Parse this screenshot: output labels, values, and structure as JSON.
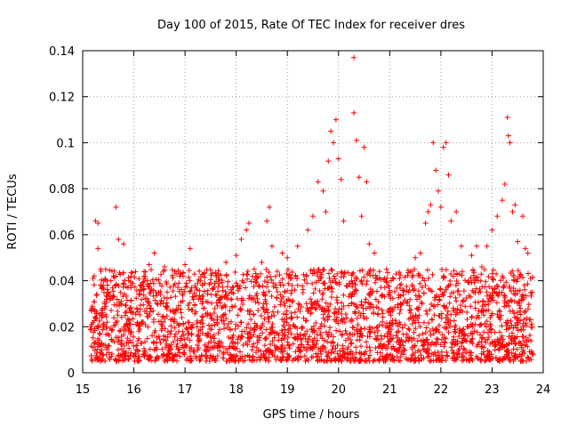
{
  "chart_data": {
    "type": "scatter",
    "title": "Day 100 of 2015, Rate Of TEC Index for receiver dres",
    "xlabel": "GPS time / hours",
    "ylabel": "ROTI / TECUs",
    "xlim": [
      15,
      24
    ],
    "ylim": [
      0,
      0.14
    ],
    "grid": true,
    "x_ticks": [
      15,
      16,
      17,
      18,
      19,
      20,
      21,
      22,
      23,
      24
    ],
    "y_ticks": [
      0,
      0.02,
      0.04,
      0.06,
      0.08,
      0.1,
      0.12,
      0.14
    ],
    "x_tick_labels": [
      "15",
      "16",
      "17",
      "18",
      "19",
      "20",
      "21",
      "22",
      "23",
      "24"
    ],
    "y_tick_labels": [
      "0",
      "0.02",
      "0.04",
      "0.06",
      "0.08",
      "0.1",
      "0.12",
      "0.14"
    ],
    "marker": "+",
    "marker_color": "#ff0000",
    "series": [
      {
        "name": "ROTI",
        "points": [
          [
            15.2,
            0.041
          ],
          [
            15.25,
            0.066
          ],
          [
            15.3,
            0.065
          ],
          [
            15.3,
            0.054
          ],
          [
            15.35,
            0.045
          ],
          [
            15.4,
            0.038
          ],
          [
            15.5,
            0.035
          ],
          [
            15.6,
            0.042
          ],
          [
            15.65,
            0.072
          ],
          [
            15.7,
            0.058
          ],
          [
            15.8,
            0.056
          ],
          [
            15.9,
            0.04
          ],
          [
            16.1,
            0.034
          ],
          [
            16.2,
            0.044
          ],
          [
            16.3,
            0.047
          ],
          [
            16.4,
            0.052
          ],
          [
            16.6,
            0.046
          ],
          [
            16.8,
            0.044
          ],
          [
            17.1,
            0.054
          ],
          [
            17.0,
            0.047
          ],
          [
            17.3,
            0.04
          ],
          [
            17.5,
            0.039
          ],
          [
            17.8,
            0.048
          ],
          [
            18.0,
            0.051
          ],
          [
            18.1,
            0.058
          ],
          [
            18.2,
            0.062
          ],
          [
            18.25,
            0.065
          ],
          [
            18.35,
            0.045
          ],
          [
            18.5,
            0.048
          ],
          [
            18.6,
            0.066
          ],
          [
            18.65,
            0.072
          ],
          [
            18.7,
            0.055
          ],
          [
            18.9,
            0.052
          ],
          [
            19.0,
            0.05
          ],
          [
            19.2,
            0.055
          ],
          [
            19.4,
            0.062
          ],
          [
            19.5,
            0.068
          ],
          [
            19.6,
            0.083
          ],
          [
            19.7,
            0.079
          ],
          [
            19.75,
            0.07
          ],
          [
            19.8,
            0.092
          ],
          [
            19.85,
            0.105
          ],
          [
            19.9,
            0.1
          ],
          [
            19.95,
            0.11
          ],
          [
            20.0,
            0.093
          ],
          [
            20.05,
            0.084
          ],
          [
            20.1,
            0.066
          ],
          [
            20.3,
            0.137
          ],
          [
            20.3,
            0.113
          ],
          [
            20.35,
            0.101
          ],
          [
            20.4,
            0.085
          ],
          [
            20.5,
            0.098
          ],
          [
            20.55,
            0.083
          ],
          [
            20.45,
            0.068
          ],
          [
            20.6,
            0.056
          ],
          [
            20.7,
            0.052
          ],
          [
            20.8,
            0.044
          ],
          [
            20.9,
            0.041
          ],
          [
            21.0,
            0.035
          ],
          [
            21.2,
            0.038
          ],
          [
            21.4,
            0.044
          ],
          [
            21.5,
            0.05
          ],
          [
            21.6,
            0.052
          ],
          [
            21.7,
            0.065
          ],
          [
            21.75,
            0.07
          ],
          [
            21.8,
            0.073
          ],
          [
            21.85,
            0.1
          ],
          [
            21.9,
            0.088
          ],
          [
            21.95,
            0.079
          ],
          [
            22.0,
            0.072
          ],
          [
            22.05,
            0.098
          ],
          [
            22.1,
            0.1
          ],
          [
            22.15,
            0.086
          ],
          [
            22.2,
            0.066
          ],
          [
            22.3,
            0.07
          ],
          [
            22.4,
            0.055
          ],
          [
            22.6,
            0.051
          ],
          [
            22.7,
            0.055
          ],
          [
            22.8,
            0.046
          ],
          [
            22.9,
            0.055
          ],
          [
            23.0,
            0.062
          ],
          [
            23.1,
            0.068
          ],
          [
            23.2,
            0.075
          ],
          [
            23.25,
            0.082
          ],
          [
            23.3,
            0.111
          ],
          [
            23.32,
            0.103
          ],
          [
            23.35,
            0.1
          ],
          [
            23.4,
            0.07
          ],
          [
            23.45,
            0.073
          ],
          [
            23.5,
            0.057
          ],
          [
            23.6,
            0.068
          ],
          [
            23.65,
            0.054
          ],
          [
            23.7,
            0.052
          ],
          [
            23.75,
            0.041
          ]
        ],
        "dense_band": {
          "x_range": [
            15.15,
            23.8
          ],
          "y_range": [
            0.005,
            0.045
          ],
          "note": "dense cloud of ROTI samples between ~0.005 and ~0.045 TECUs across the full time span"
        }
      }
    ]
  }
}
